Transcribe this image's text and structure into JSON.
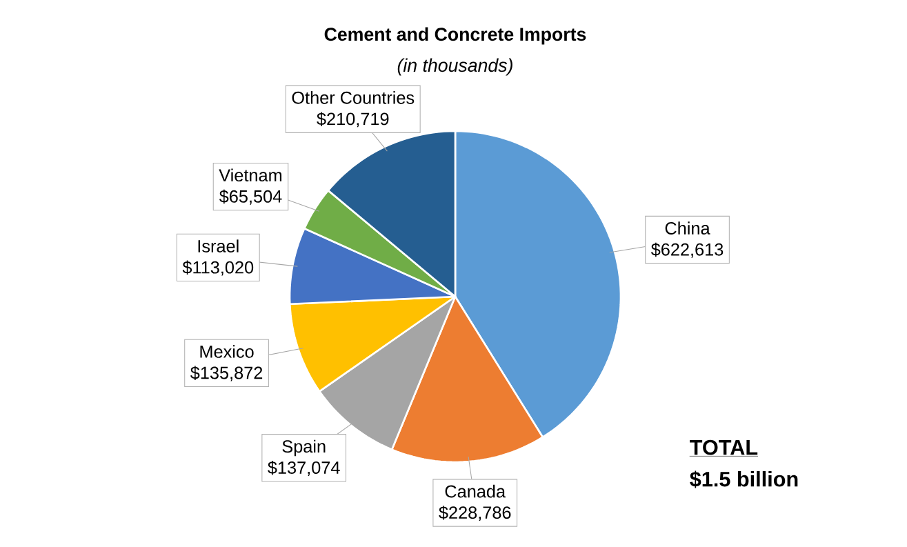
{
  "chart_data": {
    "type": "pie",
    "title": "Cement and Concrete Imports",
    "subtitle": "(in thousands)",
    "categories": [
      "China",
      "Canada",
      "Spain",
      "Mexico",
      "Israel",
      "Vietnam",
      "Other Countries"
    ],
    "values": [
      622613,
      228786,
      137074,
      135872,
      113020,
      65504,
      210719
    ],
    "value_labels": [
      "$622,613",
      "$228,786",
      "$137,074",
      "$135,872",
      "$113,020",
      "$65,504",
      "$210,719"
    ],
    "colors": [
      "#5b9bd5",
      "#ed7d31",
      "#a5a5a5",
      "#ffc000",
      "#4472c4",
      "#70ad47",
      "#255e91"
    ],
    "annotations": [
      "TOTAL",
      "$1.5 billion"
    ]
  }
}
